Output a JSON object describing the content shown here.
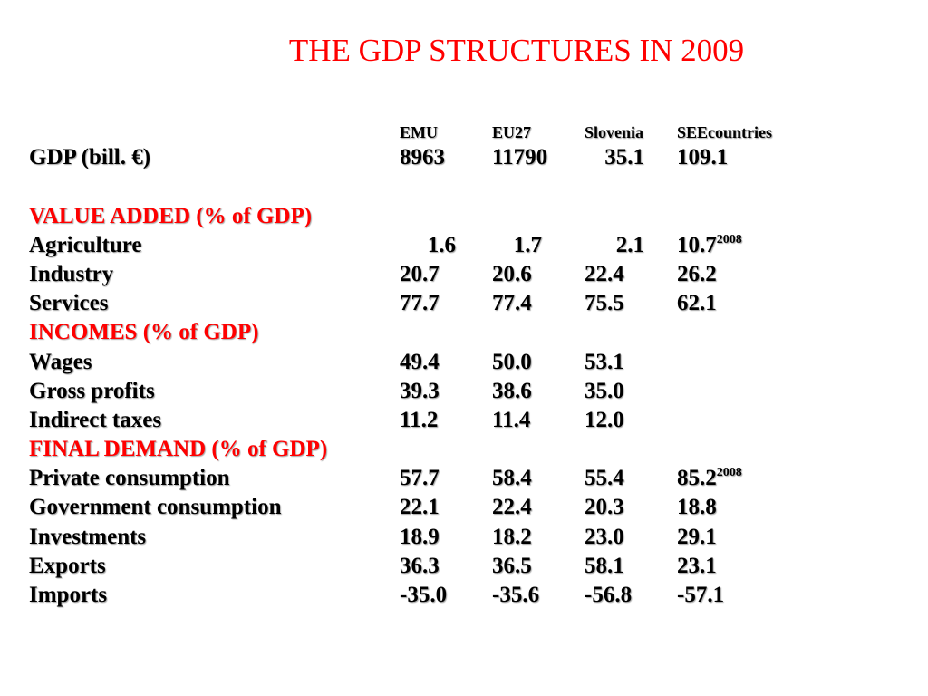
{
  "title": "THE GDP STRUCTURES IN 2009",
  "colors": {
    "title": "#ff0000",
    "section_headers": "#ff0000",
    "text": "#000000"
  },
  "columns": [
    "EMU",
    "EU27",
    "Slovenia",
    "SEEcountries"
  ],
  "gdp": {
    "label": "GDP (bill. €)",
    "values": [
      "8963",
      "11790",
      "35.1",
      "109.1"
    ]
  },
  "value_added": {
    "header": "VALUE ADDED (% of GDP)",
    "rows": [
      {
        "label": "Agriculture",
        "values": [
          "1.6",
          "1.7",
          "2.1",
          "10.7"
        ],
        "note_sup": "2008"
      },
      {
        "label": "Industry",
        "values": [
          "20.7",
          "20.6",
          "22.4",
          "26.2"
        ]
      },
      {
        "label": "Services",
        "values": [
          "77.7",
          "77.4",
          "75.5",
          "62.1"
        ]
      }
    ]
  },
  "incomes": {
    "header": "INCOMES (% of GDP)",
    "rows": [
      {
        "label": "Wages",
        "values": [
          "49.4",
          "50.0",
          "53.1"
        ]
      },
      {
        "label": "Gross profits",
        "values": [
          "39.3",
          "38.6",
          "35.0"
        ]
      },
      {
        "label": "Indirect taxes",
        "values": [
          "11.2",
          "11.4",
          "12.0"
        ]
      }
    ]
  },
  "final_demand": {
    "header": "FINAL DEMAND (% of GDP)",
    "rows": [
      {
        "label": "Private consumption",
        "values": [
          "57.7",
          "58.4",
          "55.4",
          "85.2"
        ],
        "note_sup": "2008"
      },
      {
        "label": "Government consumption",
        "values": [
          "22.1",
          "22.4",
          "20.3",
          "18.8"
        ]
      },
      {
        "label": "Investments",
        "values": [
          "18.9",
          "18.2",
          "23.0",
          "29.1"
        ]
      },
      {
        "label": "Exports",
        "values": [
          "36.3",
          "36.5",
          "58.1",
          "23.1"
        ]
      },
      {
        "label": "Imports",
        "values": [
          "-35.0",
          "-35.6",
          "-56.8",
          "-57.1"
        ]
      }
    ]
  }
}
